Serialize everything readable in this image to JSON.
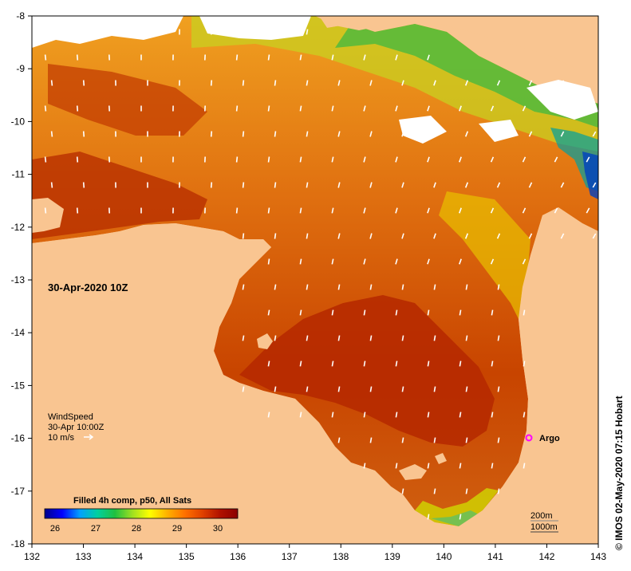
{
  "map": {
    "date_label": "30-Apr-2020 10Z",
    "lon_ticks": [
      "132",
      "133",
      "134",
      "135",
      "136",
      "137",
      "138",
      "139",
      "140",
      "141",
      "142",
      "143"
    ],
    "lat_ticks": [
      "-8",
      "-9",
      "-10",
      "-11",
      "-12",
      "-13",
      "-14",
      "-15",
      "-16",
      "-17",
      "-18"
    ],
    "colors": {
      "land": "#f9c591",
      "cloud": "#ffffff",
      "frame": "#000000"
    }
  },
  "wind_legend": {
    "line1": "WindSpeed",
    "line2": "30-Apr 10:00Z",
    "line3": "10 m/s"
  },
  "argo": {
    "label": "Argo",
    "color": "#ff00ff"
  },
  "depth_legend": {
    "line1": "200m",
    "line2": "1000m"
  },
  "colorbar": {
    "title": "Filled 4h comp, p50, All Sats",
    "ticks": [
      "26",
      "27",
      "28",
      "29",
      "30"
    ],
    "colors": [
      "#00008b",
      "#0000ff",
      "#00a0ff",
      "#00d0a0",
      "#20c040",
      "#a0e020",
      "#ffff00",
      "#ffb000",
      "#ff7000",
      "#e04000",
      "#b01000",
      "#8b0000"
    ]
  },
  "credit": "© IMOS 02-May-2020 07:15 Hobart"
}
